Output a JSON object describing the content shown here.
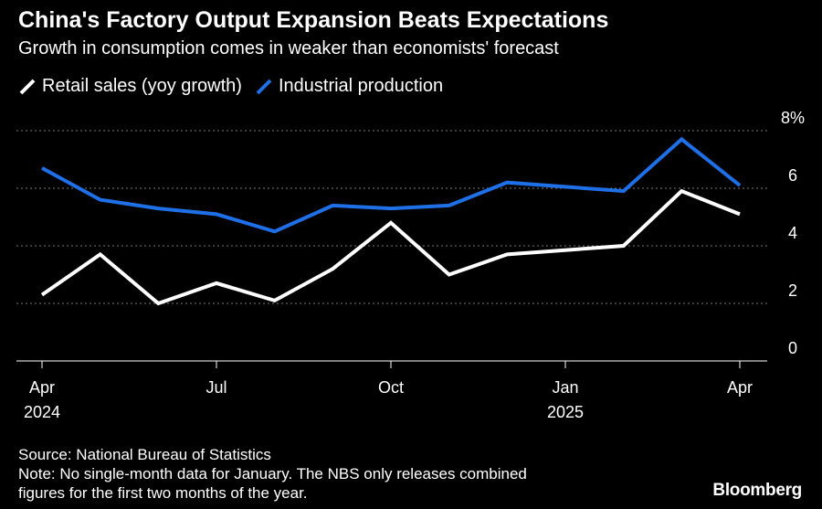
{
  "title": "China's Factory Output Expansion Beats Expectations",
  "subtitle": "Growth in consumption comes in weaker than economists' forecast",
  "legend": [
    {
      "label": "Retail sales (yoy growth)",
      "color": "#ffffff"
    },
    {
      "label": "Industrial production",
      "color": "#1f6fe6"
    }
  ],
  "source": "Source: National Bureau of Statistics",
  "note_line1": "Note: No single-month data for January. The NBS only releases combined",
  "note_line2": "figures for the first two months of the year.",
  "brand": "Bloomberg",
  "chart_data": {
    "type": "line",
    "x": [
      "2024-04",
      "2024-05",
      "2024-06",
      "2024-07",
      "2024-08",
      "2024-09",
      "2024-10",
      "2024-11",
      "2024-12",
      "2025-01",
      "2025-02",
      "2025-03",
      "2025-04"
    ],
    "series": [
      {
        "name": "Retail sales (yoy growth)",
        "color": "#ffffff",
        "values": [
          2.3,
          3.7,
          2.0,
          2.7,
          2.1,
          3.2,
          4.8,
          3.0,
          3.7,
          null,
          4.0,
          5.9,
          5.1
        ]
      },
      {
        "name": "Industrial production",
        "color": "#1f6fe6",
        "values": [
          6.7,
          5.6,
          5.3,
          5.1,
          4.5,
          5.4,
          5.3,
          5.4,
          6.2,
          null,
          5.9,
          7.7,
          6.1
        ]
      }
    ],
    "ylim": [
      0,
      8
    ],
    "yticks": [
      "0",
      "2",
      "4",
      "6",
      "8%"
    ],
    "xtick_labels": [
      {
        "x": "2024-04",
        "label": "Apr",
        "year": "2024"
      },
      {
        "x": "2024-07",
        "label": "Jul",
        "year": ""
      },
      {
        "x": "2024-10",
        "label": "Oct",
        "year": ""
      },
      {
        "x": "2025-01",
        "label": "Jan",
        "year": "2025"
      },
      {
        "x": "2025-04",
        "label": "Apr",
        "year": ""
      }
    ],
    "grid": true
  }
}
